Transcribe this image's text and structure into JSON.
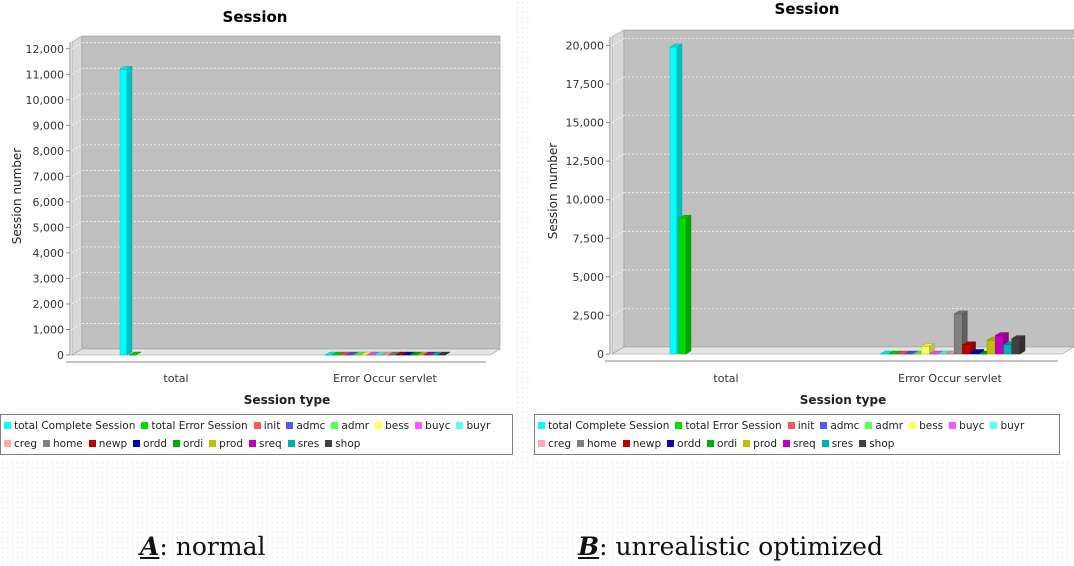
{
  "captions": [
    {
      "letter": "A",
      "text": ": normal"
    },
    {
      "letter": "B",
      "text": ": unrealistic optimized"
    }
  ],
  "colors": {
    "plot_bg": "#c0c0c0",
    "side_wall": "#d8d8d8",
    "floor": "#e4e4e4",
    "gridline": "#ffffff"
  },
  "chart_data": [
    {
      "type": "bar",
      "title": "Session",
      "xlabel": "Session type",
      "ylabel": "Session number",
      "categories": [
        "total",
        "Error Occur servlet"
      ],
      "ylim": [
        0,
        12500
      ],
      "yticks": [
        0,
        1000,
        2000,
        3000,
        4000,
        5000,
        6000,
        7000,
        8000,
        9000,
        10000,
        11000,
        12000
      ],
      "ytick_labels": [
        "0",
        "1,000",
        "2,000",
        "3,000",
        "4,000",
        "5,000",
        "6,000",
        "7,000",
        "8,000",
        "9,000",
        "10,000",
        "11,000",
        "12,000"
      ],
      "grid": true,
      "legend_position": "bottom",
      "series": [
        {
          "name": "total Complete Session",
          "color": "#00ffff",
          "values": [
            11200,
            0
          ]
        },
        {
          "name": "total Error Session",
          "color": "#00dd00",
          "values": [
            0,
            0
          ]
        },
        {
          "name": "init",
          "color": "#ff5555",
          "values": [
            0,
            0
          ]
        },
        {
          "name": "admc",
          "color": "#5555ff",
          "values": [
            0,
            0
          ]
        },
        {
          "name": "admr",
          "color": "#55ff55",
          "values": [
            0,
            0
          ]
        },
        {
          "name": "bess",
          "color": "#ffff55",
          "values": [
            0,
            0
          ]
        },
        {
          "name": "buyc",
          "color": "#ff55ff",
          "values": [
            0,
            0
          ]
        },
        {
          "name": "buyr",
          "color": "#55ffff",
          "values": [
            0,
            0
          ]
        },
        {
          "name": "creg",
          "color": "#ffaaaa",
          "values": [
            0,
            0
          ]
        },
        {
          "name": "home",
          "color": "#808080",
          "values": [
            0,
            0
          ]
        },
        {
          "name": "newp",
          "color": "#c00000",
          "values": [
            0,
            0
          ]
        },
        {
          "name": "ordd",
          "color": "#0000c0",
          "values": [
            0,
            0
          ]
        },
        {
          "name": "ordi",
          "color": "#00b000",
          "values": [
            0,
            0
          ]
        },
        {
          "name": "prod",
          "color": "#c0c000",
          "values": [
            0,
            0
          ]
        },
        {
          "name": "sreq",
          "color": "#c000c0",
          "values": [
            0,
            0
          ]
        },
        {
          "name": "sres",
          "color": "#00b0b0",
          "values": [
            0,
            0
          ]
        },
        {
          "name": "shop",
          "color": "#404040",
          "values": [
            0,
            0
          ]
        }
      ]
    },
    {
      "type": "bar",
      "title": "Session",
      "xlabel": "Session type",
      "ylabel": "Session number",
      "categories": [
        "total",
        "Error Occur servlet"
      ],
      "ylim": [
        0,
        21000
      ],
      "yticks": [
        0,
        2500,
        5000,
        7500,
        10000,
        12500,
        15000,
        17500,
        20000
      ],
      "ytick_labels": [
        "0",
        "2,500",
        "5,000",
        "7,500",
        "10,000",
        "12,500",
        "15,000",
        "17,500",
        "20,000"
      ],
      "grid": true,
      "legend_position": "bottom",
      "series": [
        {
          "name": "total Complete Session",
          "color": "#00ffff",
          "values": [
            19900,
            0
          ]
        },
        {
          "name": "total Error Session",
          "color": "#00dd00",
          "values": [
            8800,
            0
          ]
        },
        {
          "name": "init",
          "color": "#ff5555",
          "values": [
            0,
            0
          ]
        },
        {
          "name": "admc",
          "color": "#5555ff",
          "values": [
            0,
            0
          ]
        },
        {
          "name": "admr",
          "color": "#55ff55",
          "values": [
            0,
            0
          ]
        },
        {
          "name": "bess",
          "color": "#ffff55",
          "values": [
            0,
            500
          ]
        },
        {
          "name": "buyc",
          "color": "#ff55ff",
          "values": [
            0,
            0
          ]
        },
        {
          "name": "buyr",
          "color": "#55ffff",
          "values": [
            0,
            0
          ]
        },
        {
          "name": "creg",
          "color": "#ffaaaa",
          "values": [
            0,
            0
          ]
        },
        {
          "name": "home",
          "color": "#808080",
          "values": [
            0,
            2600
          ]
        },
        {
          "name": "newp",
          "color": "#c00000",
          "values": [
            0,
            600
          ]
        },
        {
          "name": "ordd",
          "color": "#0000c0",
          "values": [
            0,
            100
          ]
        },
        {
          "name": "ordi",
          "color": "#00b000",
          "values": [
            0,
            0
          ]
        },
        {
          "name": "prod",
          "color": "#c0c000",
          "values": [
            0,
            900
          ]
        },
        {
          "name": "sreq",
          "color": "#c000c0",
          "values": [
            0,
            1200
          ]
        },
        {
          "name": "sres",
          "color": "#00b0b0",
          "values": [
            0,
            600
          ]
        },
        {
          "name": "shop",
          "color": "#404040",
          "values": [
            0,
            1000
          ]
        }
      ]
    }
  ]
}
